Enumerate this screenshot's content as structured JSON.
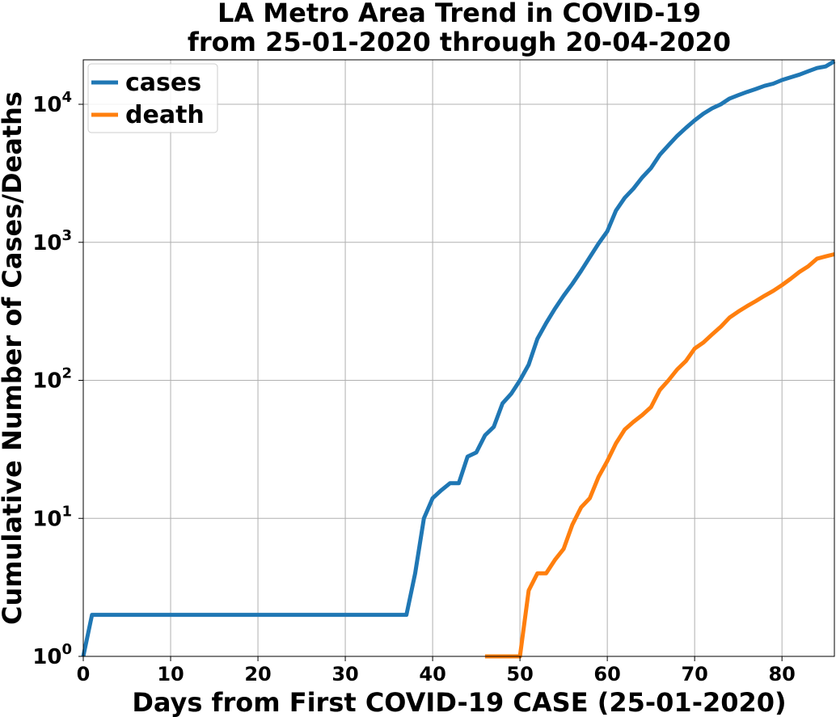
{
  "chart_data": {
    "type": "line",
    "title_lines": [
      "LA Metro Area Trend in COVID-19",
      "from 25-01-2020 through 20-04-2020"
    ],
    "xlabel": "Days from First COVID-19 CASE (25-01-2020)",
    "ylabel": "Cumulative Number of Cases/Deaths",
    "xlim": [
      0,
      86
    ],
    "ylim": [
      1,
      21000
    ],
    "yscale": "log",
    "x_ticks": [
      "0",
      "10",
      "20",
      "30",
      "40",
      "50",
      "60",
      "70",
      "80"
    ],
    "y_ticks": [
      {
        "base": "10",
        "exp": "0"
      },
      {
        "base": "10",
        "exp": "1"
      },
      {
        "base": "10",
        "exp": "2"
      },
      {
        "base": "10",
        "exp": "3"
      },
      {
        "base": "10",
        "exp": "4"
      }
    ],
    "grid": true,
    "legend_position": "top-left",
    "series": [
      {
        "name": "cases",
        "color": "#1f77b4",
        "points": [
          [
            0,
            1
          ],
          [
            1,
            2
          ],
          [
            37,
            2
          ],
          [
            38,
            4
          ],
          [
            39,
            10
          ],
          [
            40,
            14
          ],
          [
            41,
            16
          ],
          [
            42,
            18
          ],
          [
            43,
            18
          ],
          [
            44,
            28
          ],
          [
            45,
            30
          ],
          [
            46,
            40
          ],
          [
            47,
            46
          ],
          [
            48,
            68
          ],
          [
            49,
            80
          ],
          [
            50,
            100
          ],
          [
            51,
            130
          ],
          [
            52,
            200
          ],
          [
            53,
            260
          ],
          [
            54,
            330
          ],
          [
            55,
            410
          ],
          [
            56,
            500
          ],
          [
            57,
            620
          ],
          [
            58,
            780
          ],
          [
            59,
            980
          ],
          [
            60,
            1200
          ],
          [
            61,
            1700
          ],
          [
            62,
            2100
          ],
          [
            63,
            2450
          ],
          [
            64,
            2950
          ],
          [
            65,
            3450
          ],
          [
            66,
            4300
          ],
          [
            67,
            5050
          ],
          [
            68,
            5900
          ],
          [
            69,
            6750
          ],
          [
            70,
            7650
          ],
          [
            71,
            8550
          ],
          [
            72,
            9350
          ],
          [
            73,
            10000
          ],
          [
            74,
            11000
          ],
          [
            75,
            11650
          ],
          [
            76,
            12300
          ],
          [
            77,
            12900
          ],
          [
            78,
            13600
          ],
          [
            79,
            14100
          ],
          [
            80,
            15000
          ],
          [
            81,
            15700
          ],
          [
            82,
            16400
          ],
          [
            83,
            17350
          ],
          [
            84,
            18300
          ],
          [
            85,
            18800
          ],
          [
            86,
            20500
          ]
        ]
      },
      {
        "name": "death",
        "color": "#ff7f0e",
        "points": [
          [
            46,
            1
          ],
          [
            47,
            1
          ],
          [
            48,
            1
          ],
          [
            49,
            1
          ],
          [
            50,
            1
          ],
          [
            51,
            3
          ],
          [
            52,
            4
          ],
          [
            53,
            4
          ],
          [
            54,
            5
          ],
          [
            55,
            6
          ],
          [
            56,
            9
          ],
          [
            57,
            12
          ],
          [
            58,
            14
          ],
          [
            59,
            20
          ],
          [
            60,
            26
          ],
          [
            61,
            35
          ],
          [
            62,
            44
          ],
          [
            63,
            50
          ],
          [
            64,
            56
          ],
          [
            65,
            64
          ],
          [
            66,
            85
          ],
          [
            67,
            100
          ],
          [
            68,
            120
          ],
          [
            69,
            138
          ],
          [
            70,
            170
          ],
          [
            71,
            188
          ],
          [
            72,
            215
          ],
          [
            73,
            245
          ],
          [
            74,
            285
          ],
          [
            75,
            315
          ],
          [
            76,
            345
          ],
          [
            77,
            375
          ],
          [
            78,
            410
          ],
          [
            79,
            445
          ],
          [
            80,
            490
          ],
          [
            81,
            545
          ],
          [
            82,
            610
          ],
          [
            83,
            670
          ],
          [
            84,
            760
          ],
          [
            85,
            790
          ],
          [
            86,
            820
          ]
        ]
      }
    ]
  }
}
